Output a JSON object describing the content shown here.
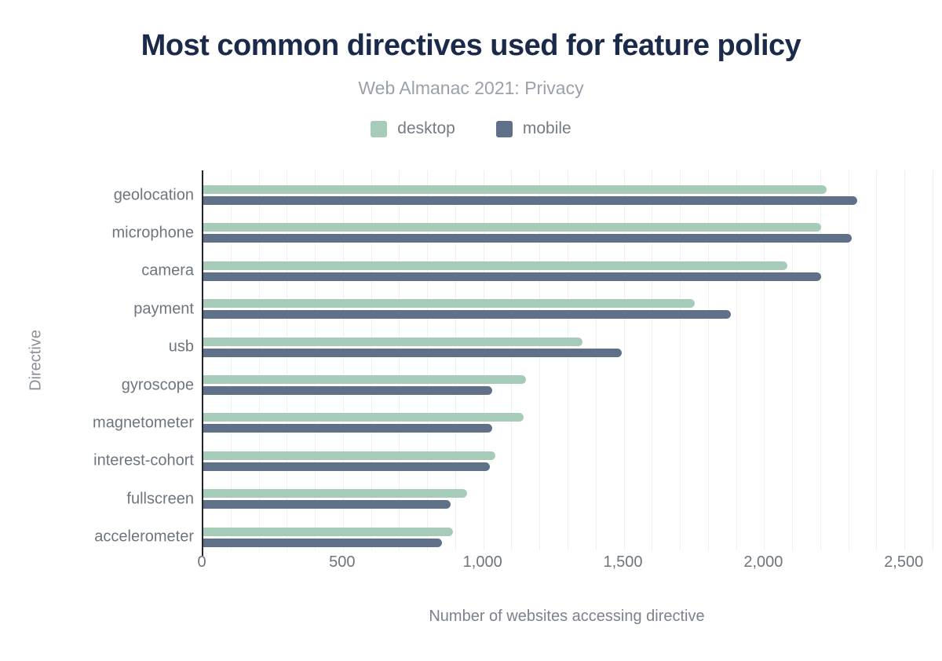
{
  "chart_data": {
    "type": "bar",
    "orientation": "horizontal",
    "title": "Most common directives used for feature policy",
    "subtitle": "Web Almanac 2021: Privacy",
    "xlabel": "Number of websites accessing directive",
    "ylabel": "Directive",
    "categories": [
      "geolocation",
      "microphone",
      "camera",
      "payment",
      "usb",
      "gyroscope",
      "magnetometer",
      "interest-cohort",
      "fullscreen",
      "accelerometer"
    ],
    "series": [
      {
        "name": "desktop",
        "color": "#a7cbb9",
        "values": [
          2220,
          2200,
          2080,
          1750,
          1350,
          1150,
          1140,
          1040,
          940,
          890
        ]
      },
      {
        "name": "mobile",
        "color": "#5e7189",
        "values": [
          2330,
          2310,
          2200,
          1880,
          1490,
          1030,
          1030,
          1020,
          880,
          850
        ]
      }
    ],
    "xlim": [
      0,
      2600
    ],
    "xticks": [
      {
        "value": 0,
        "label": "0"
      },
      {
        "value": 500,
        "label": "500"
      },
      {
        "value": 1000,
        "label": "1,000"
      },
      {
        "value": 1500,
        "label": "1,500"
      },
      {
        "value": 2000,
        "label": "2,000"
      },
      {
        "value": 2500,
        "label": "2,500"
      }
    ],
    "grid": {
      "interval": 100,
      "color": "#f0f0f0"
    },
    "legend_position": "top",
    "title_color": "#1b2a4a",
    "axis_color": "#22252d"
  }
}
